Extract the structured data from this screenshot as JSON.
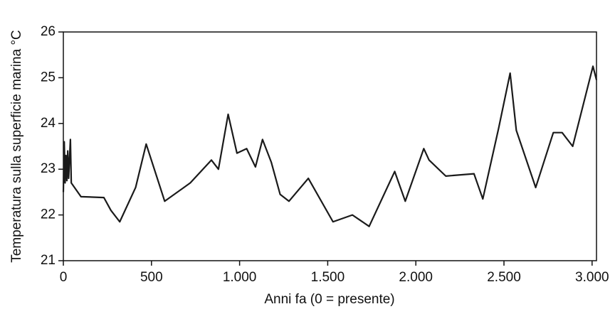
{
  "chart_data": {
    "type": "line",
    "xlabel": "Anni fa (0 = presente)",
    "ylabel": "Temperatura sulla superficie marina °C",
    "x": [
      0,
      5,
      10,
      15,
      20,
      25,
      30,
      40,
      45,
      100,
      230,
      270,
      320,
      410,
      470,
      575,
      720,
      840,
      880,
      935,
      985,
      1040,
      1090,
      1130,
      1180,
      1230,
      1280,
      1390,
      1530,
      1640,
      1735,
      1880,
      1940,
      2045,
      2075,
      2170,
      2330,
      2380,
      2470,
      2535,
      2570,
      2680,
      2780,
      2830,
      2890,
      3005,
      3025
    ],
    "series": [
      {
        "color": "#1a1a1a",
        "values": [
          22.5,
          23.6,
          22.7,
          23.3,
          22.75,
          23.4,
          22.8,
          23.65,
          22.7,
          22.4,
          22.38,
          22.1,
          21.85,
          22.6,
          23.55,
          22.3,
          22.7,
          23.2,
          23.0,
          24.2,
          23.35,
          23.45,
          23.05,
          23.65,
          23.15,
          22.45,
          22.3,
          22.8,
          21.85,
          22.0,
          21.75,
          22.95,
          22.3,
          23.45,
          23.2,
          22.85,
          22.9,
          22.35,
          23.9,
          25.1,
          23.85,
          22.6,
          23.8,
          23.8,
          23.5,
          25.25,
          24.95
        ]
      }
    ],
    "xlim": [
      0,
      3025
    ],
    "ylim": [
      21,
      26
    ],
    "xticks": [
      0,
      500,
      {
        "value": 1000,
        "label": "1.000"
      },
      {
        "value": 1500,
        "label": "1.500"
      },
      {
        "value": 2000,
        "label": "2.000"
      },
      {
        "value": 2500,
        "label": "2.500"
      },
      {
        "value": 3000,
        "label": "3.000"
      }
    ],
    "yticks": [
      21,
      22,
      23,
      24,
      25,
      26
    ]
  }
}
